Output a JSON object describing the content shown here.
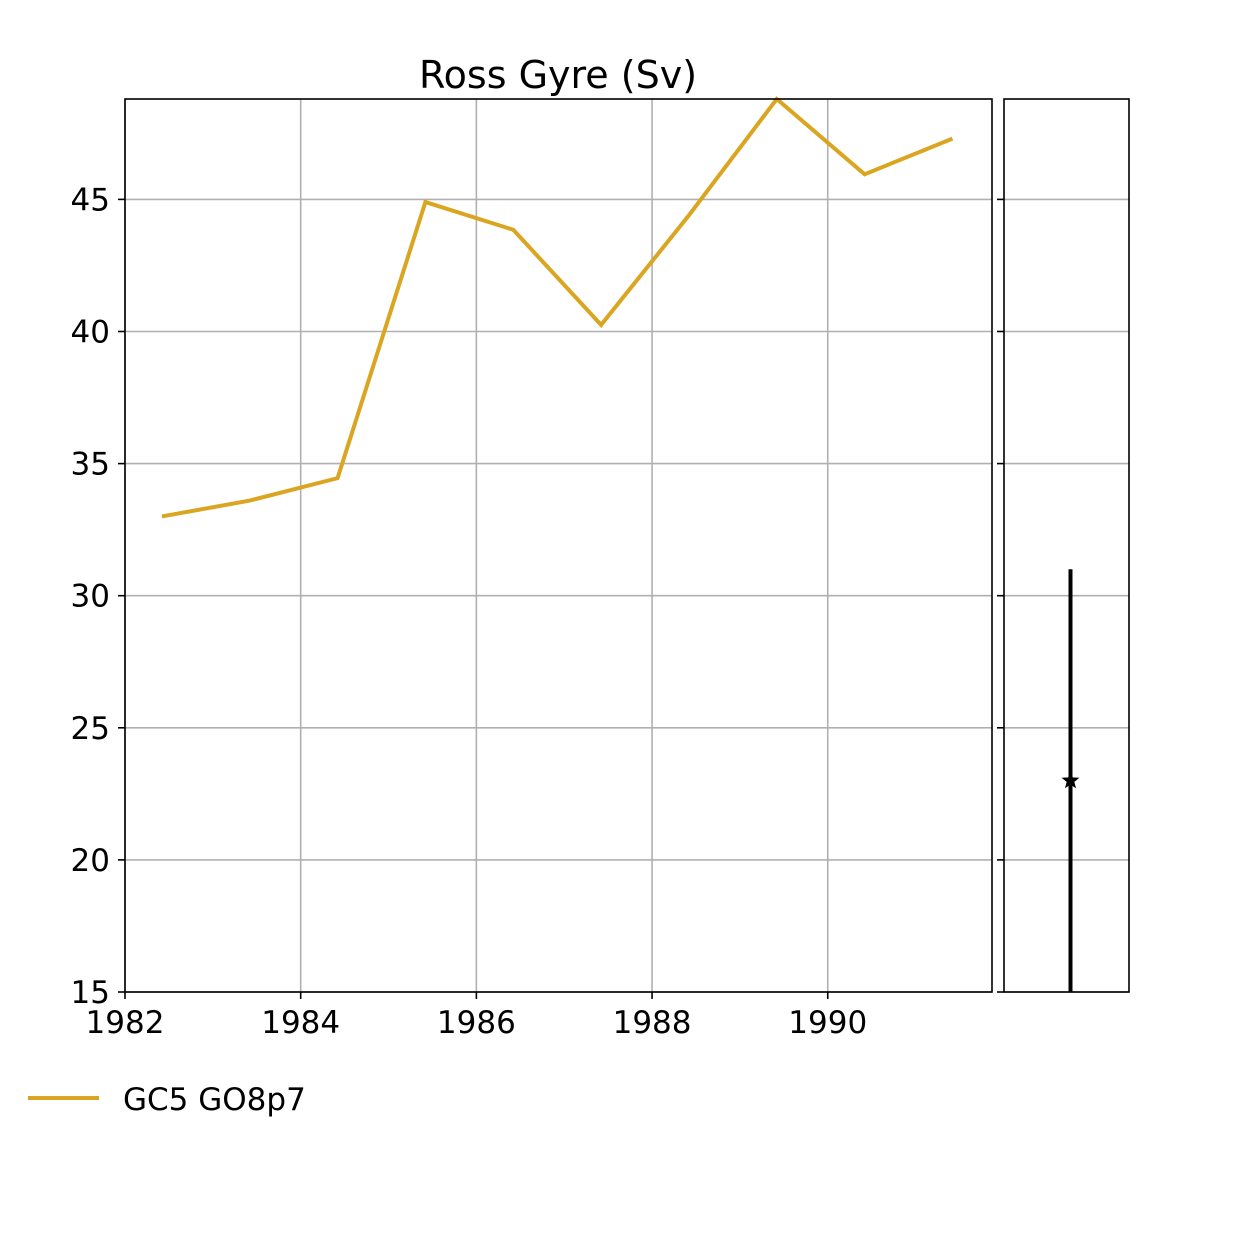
{
  "chart_data": {
    "type": "line",
    "title": "Ross Gyre (Sv)",
    "xlabel": "",
    "ylabel": "",
    "xlim": [
      1982.0,
      1991.87
    ],
    "ylim": [
      15,
      48.8
    ],
    "x_ticks": [
      1982,
      1984,
      1986,
      1988,
      1990
    ],
    "y_ticks": [
      15,
      20,
      25,
      30,
      35,
      40,
      45
    ],
    "grid": true,
    "legend_position": "bottom-left",
    "series": [
      {
        "name": "GC5 GO8p7",
        "color": "#DAA520",
        "x": [
          1982.42,
          1983.42,
          1984.42,
          1985.42,
          1986.42,
          1987.42,
          1988.42,
          1989.42,
          1990.42,
          1991.42
        ],
        "y": [
          33.0,
          33.6,
          34.45,
          44.9,
          43.85,
          40.25,
          44.4,
          48.8,
          45.95,
          47.3
        ]
      }
    ],
    "side_panel": {
      "type": "errorbar",
      "ylim": [
        15,
        48.8
      ],
      "color": "#000000",
      "marker": "star",
      "value": 23.0,
      "low": 15.0,
      "high": 31.0
    }
  }
}
